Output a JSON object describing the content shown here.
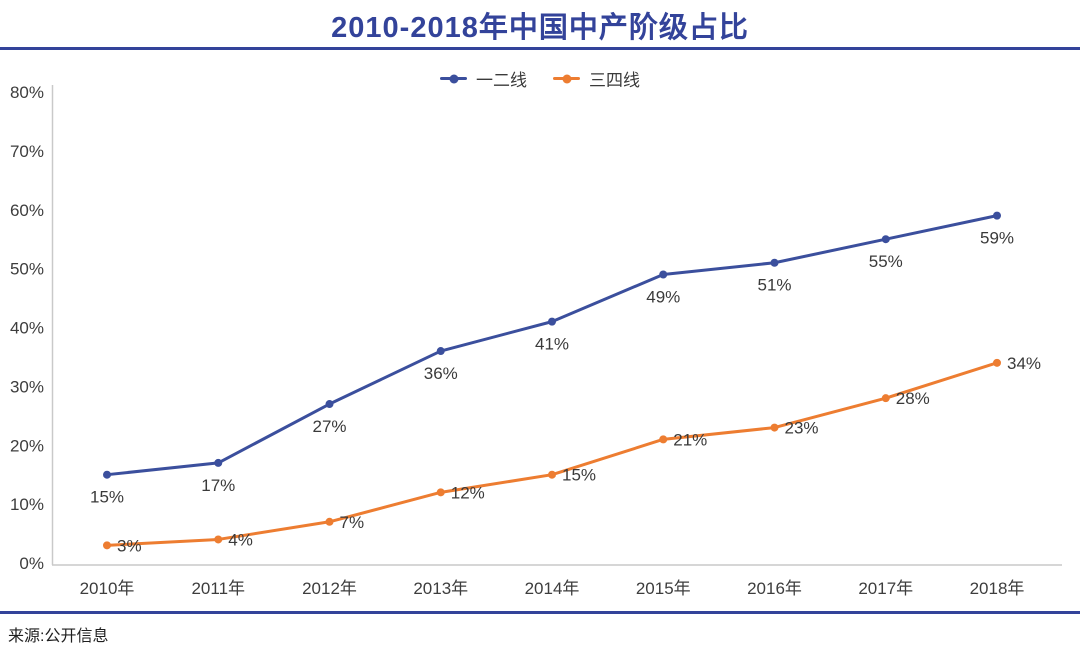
{
  "page": {
    "source_label": "来源:公开信息"
  },
  "colors": {
    "title_blue": "#33439a",
    "rule_blue": "#33439a",
    "axis_line_gray": "#c9c9c9",
    "tick_text": "#3d3d3d",
    "data_label_text": "#3a3a3a",
    "series_blue": "#3b4f9d",
    "series_orange": "#ed7d31"
  },
  "chart_data": {
    "type": "line",
    "title": "2010-2018年中国中产阶级占比",
    "xlabel": "",
    "ylabel": "",
    "categories": [
      "2010年",
      "2011年",
      "2012年",
      "2013年",
      "2014年",
      "2015年",
      "2016年",
      "2017年",
      "2018年"
    ],
    "series": [
      {
        "name": "一二线",
        "color": "#3b4f9d",
        "values": [
          15,
          17,
          27,
          36,
          41,
          49,
          51,
          55,
          59
        ],
        "label_placement": "below"
      },
      {
        "name": "三四线",
        "color": "#ed7d31",
        "values": [
          3,
          4,
          7,
          12,
          15,
          21,
          23,
          28,
          34
        ],
        "label_placement": "right"
      }
    ],
    "ylim": [
      0,
      80
    ],
    "ytick_step": 10,
    "ytick_suffix": "%",
    "value_label_suffix": "%",
    "grid": false,
    "legend_position": "top-center"
  }
}
